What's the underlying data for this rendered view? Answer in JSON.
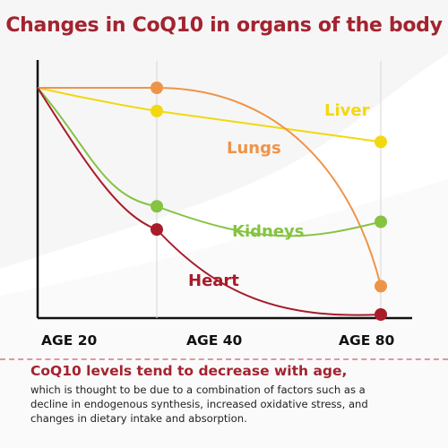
{
  "title": "Changes in CoQ10 in organs of the body",
  "colors": {
    "title": "#a3232f",
    "liver": "#f2d80f",
    "lungs": "#ee9448",
    "kidneys": "#85c341",
    "heart": "#a81c2a",
    "axis": "#111111",
    "gridline": "#dcdcdc"
  },
  "chart_data": {
    "type": "line",
    "x": [
      20,
      40,
      80
    ],
    "x_tick_labels": [
      "AGE 20",
      "AGE 40",
      "AGE 80"
    ],
    "ylim": [
      0,
      100
    ],
    "grid": "vertical lines at AGE 40 and AGE 80",
    "legend": "series labels placed next to each curve",
    "series": [
      {
        "name": "Liver",
        "color": "#f2d80f",
        "values": [
          100,
          91,
          79
        ]
      },
      {
        "name": "Lungs",
        "color": "#ee9448",
        "values": [
          100,
          100,
          23
        ]
      },
      {
        "name": "Kidneys",
        "color": "#85c341",
        "values": [
          100,
          54,
          48
        ]
      },
      {
        "name": "Heart",
        "color": "#a81c2a",
        "values": [
          100,
          45,
          12
        ]
      }
    ]
  },
  "footer": {
    "headline": "CoQ10 levels tend to decrease with age,",
    "body_lines": [
      "which is thought to be due to a combination of factors such as a",
      "decline in endogenous synthesis, increased oxidative stress, and",
      "changes in dietary intake and absorption."
    ]
  }
}
